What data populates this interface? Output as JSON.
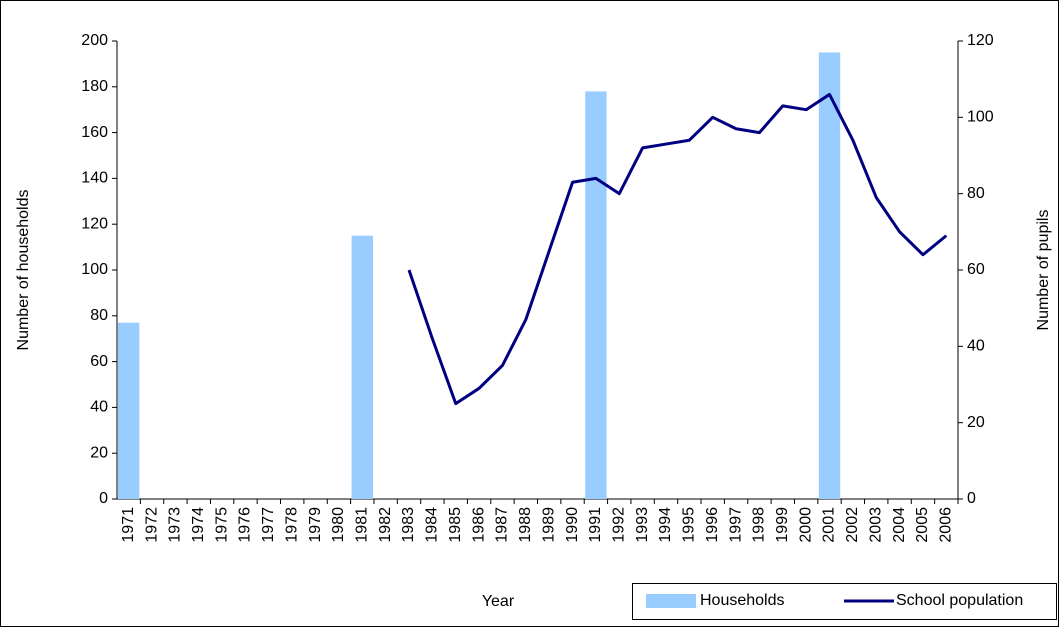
{
  "chart_data": {
    "type": "bar-line",
    "categories": [
      "1971",
      "1972",
      "1973",
      "1974",
      "1975",
      "1976",
      "1977",
      "1978",
      "1979",
      "1980",
      "1981",
      "1982",
      "1983",
      "1984",
      "1985",
      "1986",
      "1987",
      "1988",
      "1989",
      "1990",
      "1991",
      "1992",
      "1993",
      "1994",
      "1995",
      "1996",
      "1997",
      "1998",
      "1999",
      "2000",
      "2001",
      "2002",
      "2003",
      "2004",
      "2005",
      "2006"
    ],
    "x_label": "Year",
    "y_label": "Number of households",
    "y2_label": "Number of pupils",
    "ylim": [
      0,
      200
    ],
    "yticks": [
      0,
      20,
      40,
      60,
      80,
      100,
      120,
      140,
      160,
      180,
      200
    ],
    "y2lim": [
      0,
      120
    ],
    "y2ticks": [
      0,
      20,
      40,
      60,
      80,
      100,
      120
    ],
    "series": [
      {
        "name": "Households",
        "type": "bar",
        "color": "#99ccff",
        "values": [
          77,
          null,
          null,
          null,
          null,
          null,
          null,
          null,
          null,
          null,
          115,
          null,
          null,
          null,
          null,
          null,
          null,
          null,
          null,
          null,
          178,
          null,
          null,
          null,
          null,
          null,
          null,
          null,
          null,
          null,
          195,
          null,
          null,
          null,
          null,
          null
        ]
      },
      {
        "name": "School population",
        "type": "line",
        "axis": "y2",
        "color": "#000080",
        "values": [
          null,
          null,
          null,
          null,
          null,
          null,
          null,
          null,
          null,
          null,
          null,
          null,
          60,
          42,
          25,
          29,
          35,
          47,
          65,
          83,
          84,
          80,
          92,
          93,
          94,
          100,
          97,
          96,
          103,
          102,
          106,
          94,
          79,
          70,
          64,
          69
        ]
      }
    ]
  }
}
